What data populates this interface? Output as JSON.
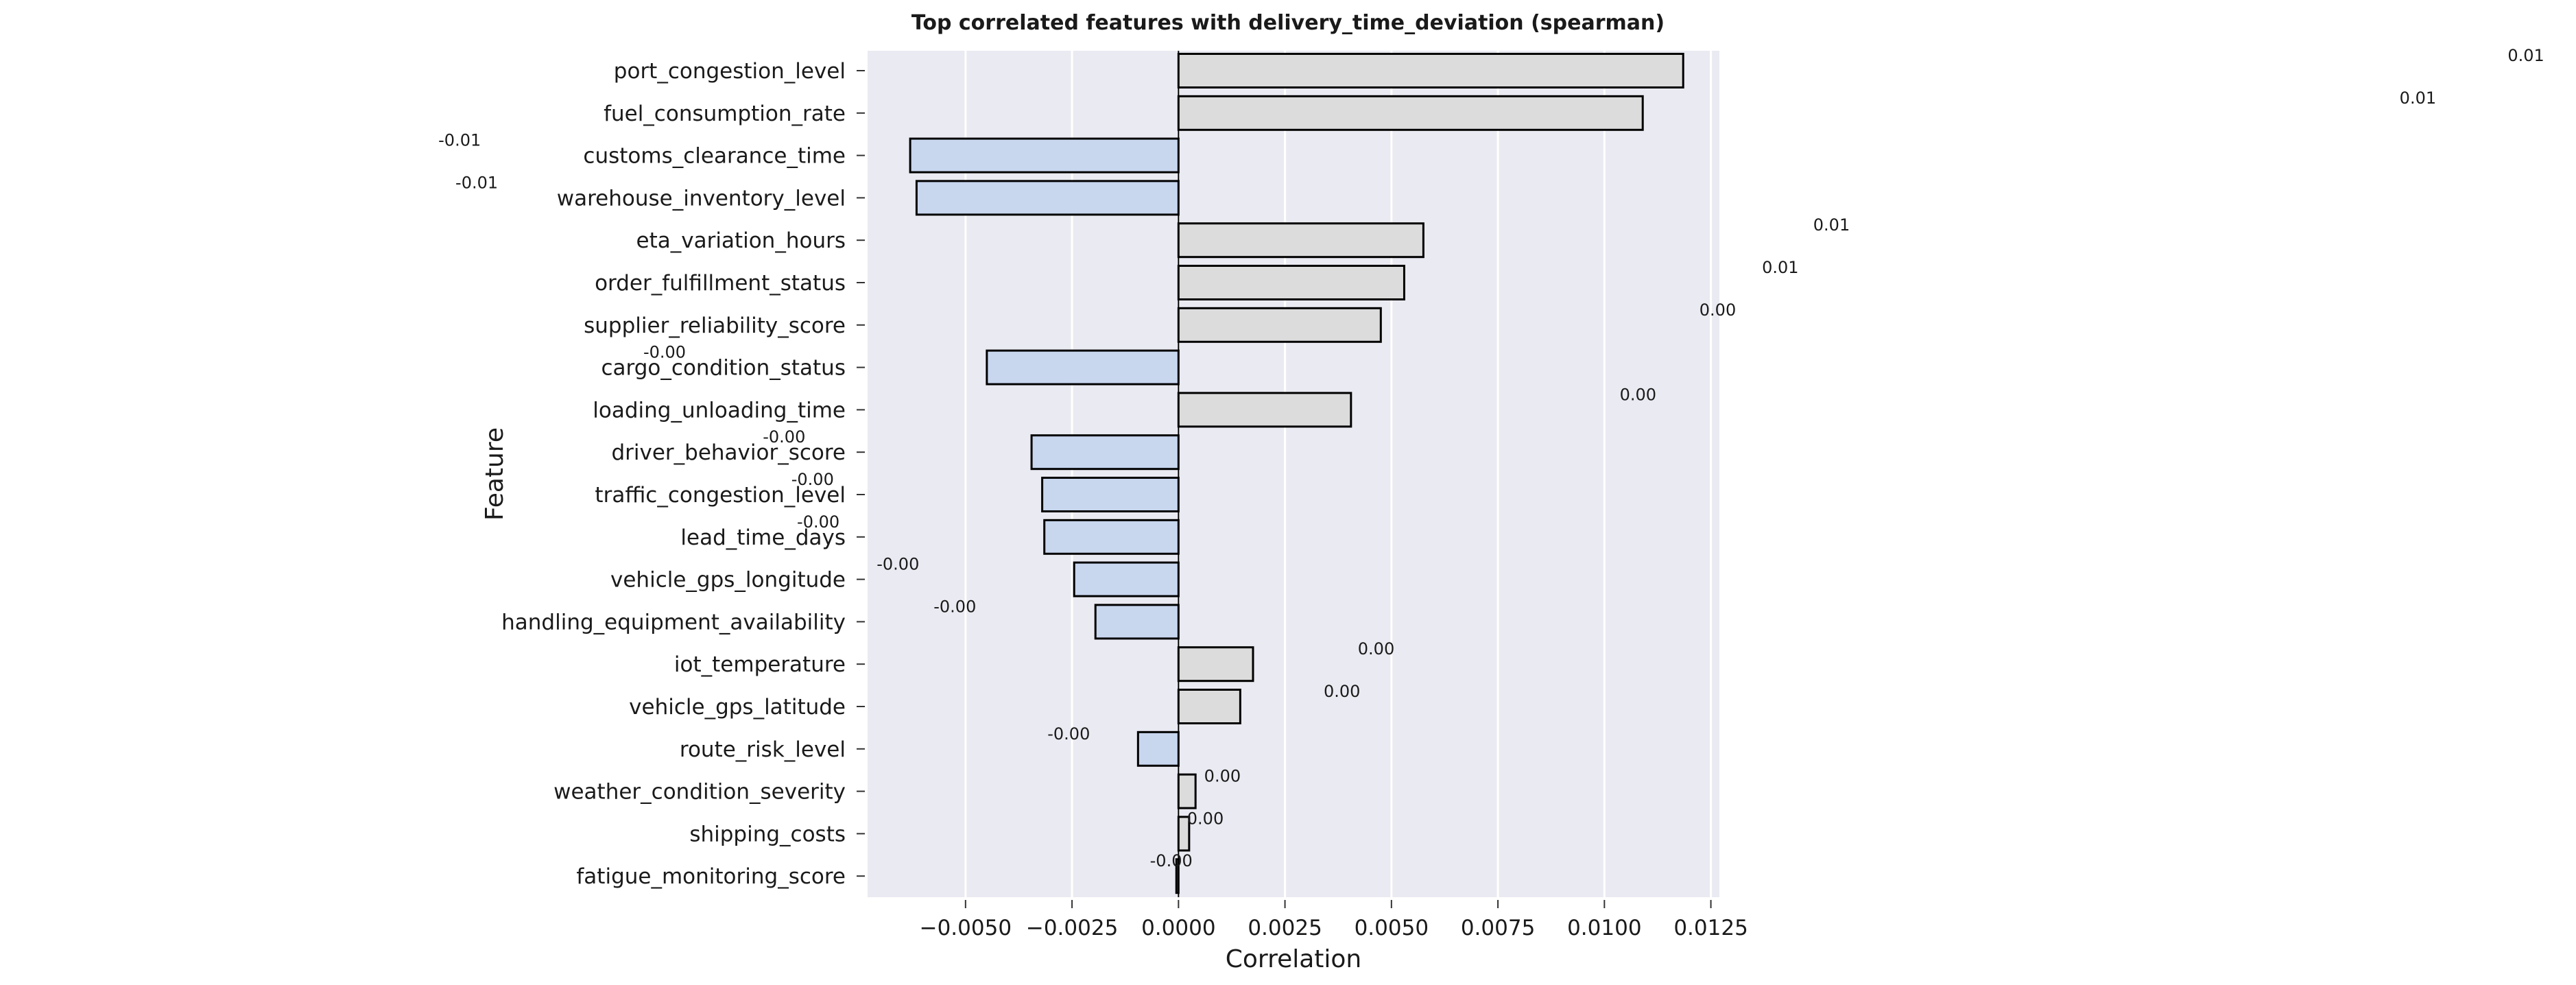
{
  "chart_data": {
    "type": "bar",
    "orientation": "horizontal",
    "title": "Top correlated features with delivery_time_deviation (spearman)",
    "xlabel": "Correlation",
    "ylabel": "Feature",
    "xlim": [
      -0.0073,
      0.0127
    ],
    "xticks": [
      -0.005,
      -0.0025,
      0.0,
      0.0025,
      0.005,
      0.0075,
      0.01,
      0.0125
    ],
    "xtick_labels": [
      "−0.0050",
      "−0.0025",
      "0.0000",
      "0.0025",
      "0.0050",
      "0.0075",
      "0.0100",
      "0.0125"
    ],
    "grid": true,
    "categories": [
      "port_congestion_level",
      "fuel_consumption_rate",
      "customs_clearance_time",
      "warehouse_inventory_level",
      "eta_variation_hours",
      "order_fulfillment_status",
      "supplier_reliability_score",
      "cargo_condition_status",
      "loading_unloading_time",
      "driver_behavior_score",
      "traffic_congestion_level",
      "lead_time_days",
      "vehicle_gps_longitude",
      "handling_equipment_availability",
      "iot_temperature",
      "vehicle_gps_latitude",
      "route_risk_level",
      "weather_condition_severity",
      "shipping_costs",
      "fatigue_monitoring_score"
    ],
    "values": [
      0.01185,
      0.0109,
      -0.0063,
      -0.00615,
      0.00575,
      0.0053,
      0.00475,
      -0.0045,
      0.00405,
      -0.00345,
      -0.0032,
      -0.00315,
      -0.00245,
      -0.00195,
      0.00175,
      0.00145,
      -0.00095,
      0.0004,
      0.00025,
      -5e-05
    ],
    "value_labels": [
      "0.01",
      "0.01",
      "-0.01",
      "-0.01",
      "0.01",
      "0.01",
      "0.00",
      "-0.00",
      "0.00",
      "-0.00",
      "-0.00",
      "-0.00",
      "-0.00",
      "-0.00",
      "0.00",
      "0.00",
      "-0.00",
      "0.00",
      "0.00",
      "-0.00"
    ],
    "colors": {
      "positive": "#dcdcdc",
      "negative": "#c8d6ee",
      "edge": "#000000",
      "plot_background": "#eaeaf2",
      "grid": "#ffffff"
    }
  }
}
